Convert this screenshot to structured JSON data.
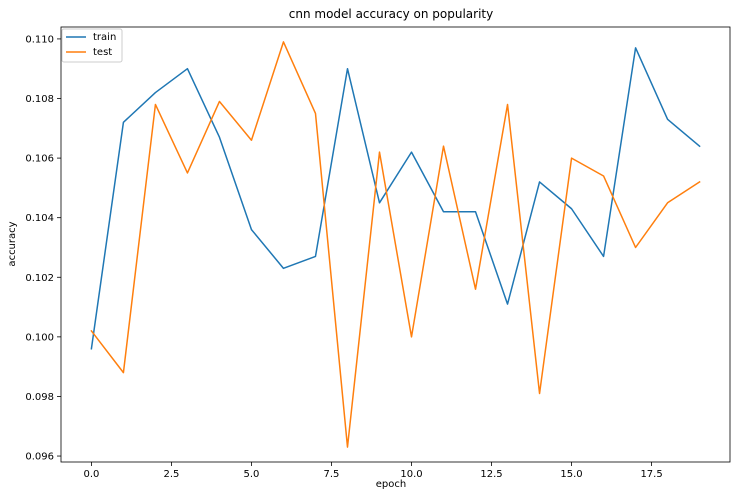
{
  "chart_data": {
    "type": "line",
    "title": "cnn model accuracy on popularity",
    "xlabel": "epoch",
    "ylabel": "accuracy",
    "x": [
      0,
      1,
      2,
      3,
      4,
      5,
      6,
      7,
      8,
      9,
      10,
      11,
      12,
      13,
      14,
      15,
      16,
      17,
      18,
      19
    ],
    "series": [
      {
        "name": "train",
        "color": "#1f77b4",
        "values": [
          0.0996,
          0.1072,
          0.1082,
          0.109,
          0.1067,
          0.1036,
          0.1023,
          0.1027,
          0.109,
          0.1045,
          0.1062,
          0.1042,
          0.1042,
          0.1011,
          0.1052,
          0.1043,
          0.1027,
          0.1097,
          0.1073,
          0.1064
        ]
      },
      {
        "name": "test",
        "color": "#ff7f0e",
        "values": [
          0.1002,
          0.0988,
          0.1078,
          0.1055,
          0.1079,
          0.1066,
          0.1099,
          0.1075,
          0.0963,
          0.1062,
          0.1,
          0.1064,
          0.1016,
          0.1078,
          0.0981,
          0.106,
          0.1054,
          0.103,
          0.1045,
          0.1052
        ]
      }
    ],
    "xlim": [
      -0.95,
      19.95
    ],
    "ylim": [
      0.0958,
      0.1104
    ],
    "xticks": [
      0.0,
      2.5,
      5.0,
      7.5,
      10.0,
      12.5,
      15.0,
      17.5
    ],
    "xtick_labels": [
      "0.0",
      "2.5",
      "5.0",
      "7.5",
      "10.0",
      "12.5",
      "15.0",
      "17.5"
    ],
    "yticks": [
      0.096,
      0.098,
      0.1,
      0.102,
      0.104,
      0.106,
      0.108,
      0.11
    ],
    "ytick_labels": [
      "0.096",
      "0.098",
      "0.100",
      "0.102",
      "0.104",
      "0.106",
      "0.108",
      "0.110"
    ],
    "grid": false,
    "legend_position": "top-left"
  }
}
